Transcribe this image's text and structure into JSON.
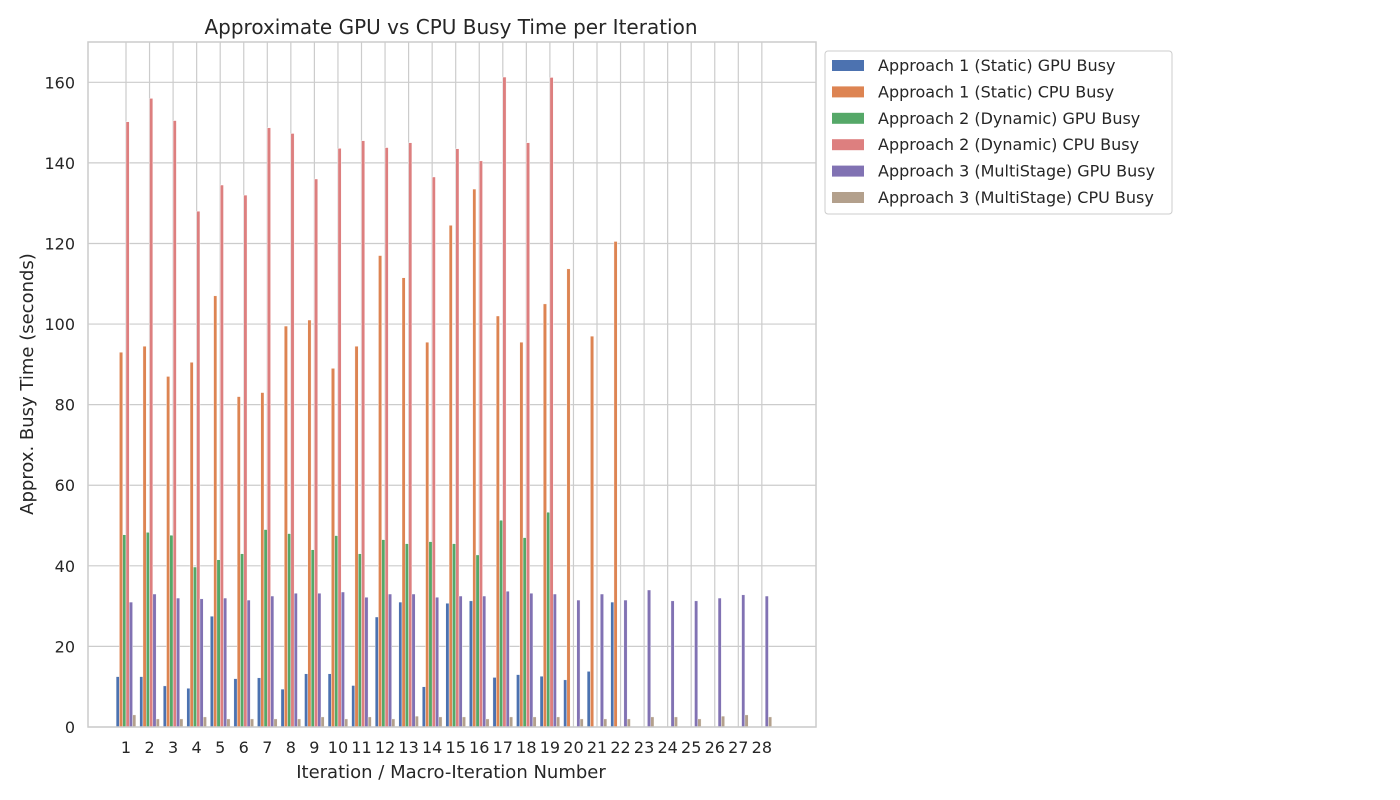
{
  "chart_data": {
    "type": "bar",
    "title": "Approximate GPU vs CPU Busy Time per Iteration",
    "xlabel": "Iteration / Macro-Iteration Number",
    "ylabel": "Approx. Busy Time (seconds)",
    "ylim": [
      0,
      170
    ],
    "yticks": [
      0,
      20,
      40,
      60,
      80,
      100,
      120,
      140,
      160
    ],
    "grid": true,
    "legend_position": "outside-top-right",
    "categories": [
      "1",
      "2",
      "3",
      "4",
      "5",
      "6",
      "7",
      "8",
      "9",
      "10",
      "11",
      "12",
      "13",
      "14",
      "15",
      "16",
      "17",
      "18",
      "19",
      "20",
      "21",
      "22",
      "23",
      "24",
      "25",
      "26",
      "27",
      "28"
    ],
    "series": [
      {
        "name": "Approach 1 (Static) GPU Busy",
        "color": "#4c72b0",
        "values": [
          12.5,
          12.5,
          10.2,
          9.6,
          27.5,
          12.0,
          12.2,
          9.4,
          13.2,
          13.2,
          10.3,
          27.3,
          31.0,
          10.0,
          30.7,
          31.3,
          12.3,
          13.0,
          12.6,
          11.7,
          13.8,
          31.0,
          null,
          null,
          null,
          null,
          null,
          null
        ]
      },
      {
        "name": "Approach 1 (Static) CPU Busy",
        "color": "#dd8452",
        "values": [
          93.0,
          94.5,
          87.0,
          90.5,
          107.0,
          82.0,
          83.0,
          99.5,
          101.0,
          89.0,
          94.5,
          117.0,
          111.5,
          95.5,
          124.5,
          133.5,
          102.0,
          95.5,
          105.0,
          113.7,
          97.0,
          120.5,
          null,
          null,
          null,
          null,
          null,
          null
        ]
      },
      {
        "name": "Approach 2 (Dynamic) GPU Busy",
        "color": "#55a868",
        "values": [
          47.7,
          48.3,
          47.6,
          39.7,
          41.5,
          43.0,
          49.0,
          48.0,
          44.0,
          47.5,
          43.0,
          46.5,
          45.5,
          46.0,
          45.5,
          42.7,
          51.3,
          47.0,
          53.3,
          null,
          null,
          null,
          null,
          null,
          null,
          null,
          null,
          null
        ]
      },
      {
        "name": "Approach 2 (Dynamic) CPU Busy",
        "color": "#dd7f7f",
        "values": [
          150.2,
          156.0,
          150.5,
          128.0,
          134.5,
          132.0,
          148.7,
          147.3,
          136.0,
          143.6,
          145.5,
          143.8,
          145.0,
          136.5,
          143.5,
          140.5,
          161.3,
          145.0,
          161.2,
          null,
          null,
          null,
          null,
          null,
          null,
          null,
          null,
          null
        ]
      },
      {
        "name": "Approach 3 (MultiStage) GPU Busy",
        "color": "#8172b3",
        "values": [
          31.0,
          33.0,
          32.0,
          31.8,
          32.0,
          31.5,
          32.5,
          33.2,
          33.2,
          33.5,
          32.2,
          33.0,
          33.0,
          32.2,
          32.5,
          32.5,
          33.7,
          33.2,
          33.0,
          31.5,
          33.0,
          31.5,
          34.0,
          31.3,
          31.3,
          32.0,
          32.8,
          32.5
        ]
      },
      {
        "name": "Approach 3 (MultiStage) CPU Busy",
        "color": "#b3a08c",
        "values": [
          3.0,
          2.0,
          2.0,
          2.5,
          2.0,
          2.0,
          2.0,
          2.0,
          2.5,
          2.0,
          2.5,
          2.0,
          2.7,
          2.5,
          2.5,
          2.0,
          2.5,
          2.5,
          2.5,
          2.0,
          2.0,
          2.0,
          2.5,
          2.5,
          2.0,
          2.7,
          3.0,
          2.5
        ]
      }
    ]
  }
}
